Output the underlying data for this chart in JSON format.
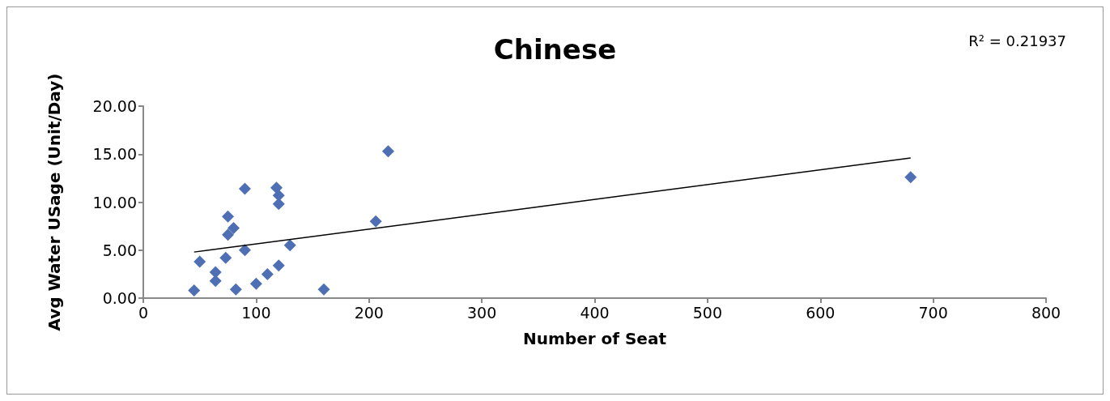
{
  "chart_data": {
    "type": "scatter",
    "title": "Chinese",
    "xlabel": "Number of Seat",
    "ylabel": "Avg Water USage (Unit/Day)",
    "annotations": [
      "R² = 0.21937"
    ],
    "series": [
      {
        "type": "scatter",
        "color": "#4f6fb5",
        "marker": "diamond",
        "x": [
          45,
          50,
          64,
          64,
          73,
          75,
          75,
          80,
          82,
          90,
          90,
          100,
          110,
          118,
          120,
          120,
          120,
          130,
          160,
          206,
          217,
          680
        ],
        "values": [
          0.8,
          3.8,
          2.7,
          1.8,
          4.2,
          8.5,
          6.6,
          7.3,
          0.9,
          11.4,
          5.0,
          1.5,
          2.5,
          11.5,
          10.7,
          9.8,
          3.4,
          5.5,
          0.9,
          8.0,
          15.3,
          12.6
        ]
      },
      {
        "type": "line",
        "color": "#000000",
        "marker": "none",
        "x": [
          45,
          680
        ],
        "values": [
          4.8,
          14.6
        ]
      }
    ],
    "xlim": [
      0,
      800
    ],
    "xticks": [
      0,
      100,
      200,
      300,
      400,
      500,
      600,
      700,
      800
    ],
    "ylim": [
      0,
      20
    ],
    "yticks": [
      {
        "value": 0,
        "label": "0.00"
      },
      {
        "value": 5,
        "label": "5.00"
      },
      {
        "value": 10,
        "label": "10.00"
      },
      {
        "value": 15,
        "label": "15.00"
      },
      {
        "value": 20,
        "label": "20.00"
      }
    ],
    "grid": false
  }
}
